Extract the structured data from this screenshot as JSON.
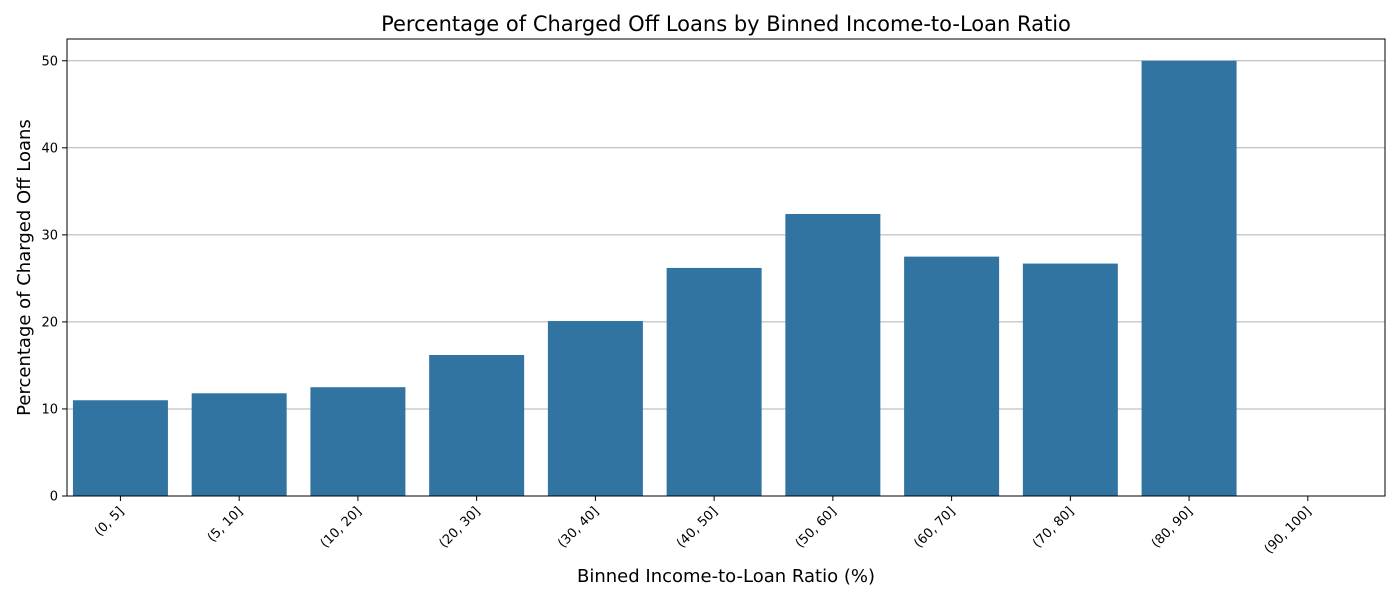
{
  "chart_data": {
    "type": "bar",
    "title": "Percentage of Charged Off Loans by Binned Income-to-Loan Ratio",
    "xlabel": "Binned Income-to-Loan Ratio (%)",
    "ylabel": "Percentage of Charged Off Loans",
    "categories": [
      "(0, 5]",
      "(5, 10]",
      "(10, 20]",
      "(20, 30]",
      "(30, 40]",
      "(40, 50]",
      "(50, 60]",
      "(60, 70]",
      "(70, 80]",
      "(80, 90]",
      "(90, 100]"
    ],
    "values": [
      11.0,
      11.8,
      12.5,
      16.2,
      20.1,
      26.2,
      32.4,
      27.5,
      26.7,
      50.0,
      0
    ],
    "ylim": [
      0,
      52.5
    ],
    "yticks": [
      0,
      10,
      20,
      30,
      40,
      50
    ],
    "grid": "y",
    "bar_color": "#3274a1"
  }
}
